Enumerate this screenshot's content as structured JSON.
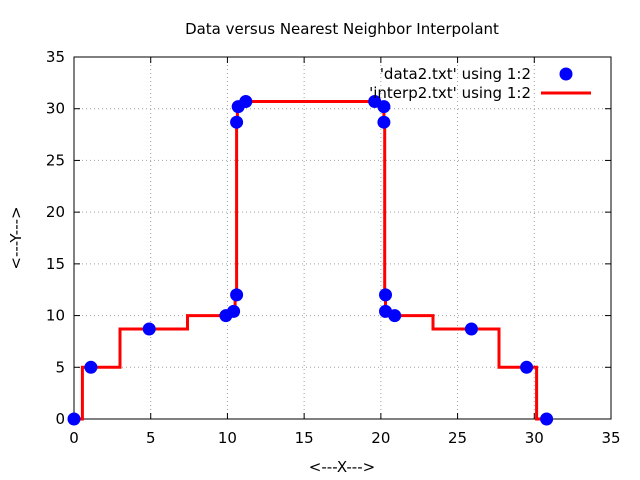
{
  "chart_data": {
    "type": "scatter",
    "title": "Data versus Nearest Neighbor Interpolant",
    "xlabel": "<---X--->",
    "ylabel": "<---Y--->",
    "xlim": [
      0,
      35
    ],
    "ylim": [
      0,
      35
    ],
    "xticks": [
      "0",
      "5",
      "10",
      "15",
      "20",
      "25",
      "30",
      "35"
    ],
    "yticks": [
      "0",
      "5",
      "10",
      "15",
      "20",
      "25",
      "30",
      "35"
    ],
    "grid": true,
    "legend_position": "top-right",
    "series": [
      {
        "name": "'data2.txt' using 1:2",
        "style": "points",
        "color": "#0000ff",
        "x": [
          0.0,
          1.1,
          4.9,
          9.9,
          10.4,
          10.6,
          10.6,
          10.7,
          11.2,
          19.6,
          20.2,
          20.2,
          20.3,
          20.3,
          20.9,
          25.9,
          29.5,
          30.8
        ],
        "y": [
          0.0,
          5.0,
          8.7,
          10.0,
          10.4,
          12.0,
          28.7,
          30.2,
          30.7,
          30.7,
          30.2,
          28.7,
          12.0,
          10.4,
          10.0,
          8.7,
          5.0,
          0.0
        ]
      },
      {
        "name": "'interp2.txt' using 1:2",
        "style": "line",
        "color": "#ff0000",
        "x": [
          0.0,
          0.55,
          0.55,
          3.0,
          3.0,
          7.4,
          7.4,
          10.15,
          10.15,
          10.5,
          10.5,
          10.6,
          10.6,
          10.65,
          10.65,
          10.95,
          10.95,
          15.4,
          15.4,
          19.9,
          19.9,
          20.2,
          20.2,
          20.25,
          20.25,
          20.3,
          20.3,
          20.6,
          20.6,
          23.4,
          23.4,
          27.7,
          27.7,
          30.15,
          30.15,
          30.8
        ],
        "y": [
          0.0,
          0.0,
          5.0,
          5.0,
          8.7,
          8.7,
          10.0,
          10.0,
          10.4,
          10.4,
          12.0,
          12.0,
          28.7,
          28.7,
          30.2,
          30.2,
          30.7,
          30.7,
          30.7,
          30.7,
          30.2,
          30.2,
          28.7,
          28.7,
          12.0,
          12.0,
          10.4,
          10.4,
          10.0,
          10.0,
          8.7,
          8.7,
          5.0,
          5.0,
          0.0,
          0.0
        ]
      }
    ]
  }
}
